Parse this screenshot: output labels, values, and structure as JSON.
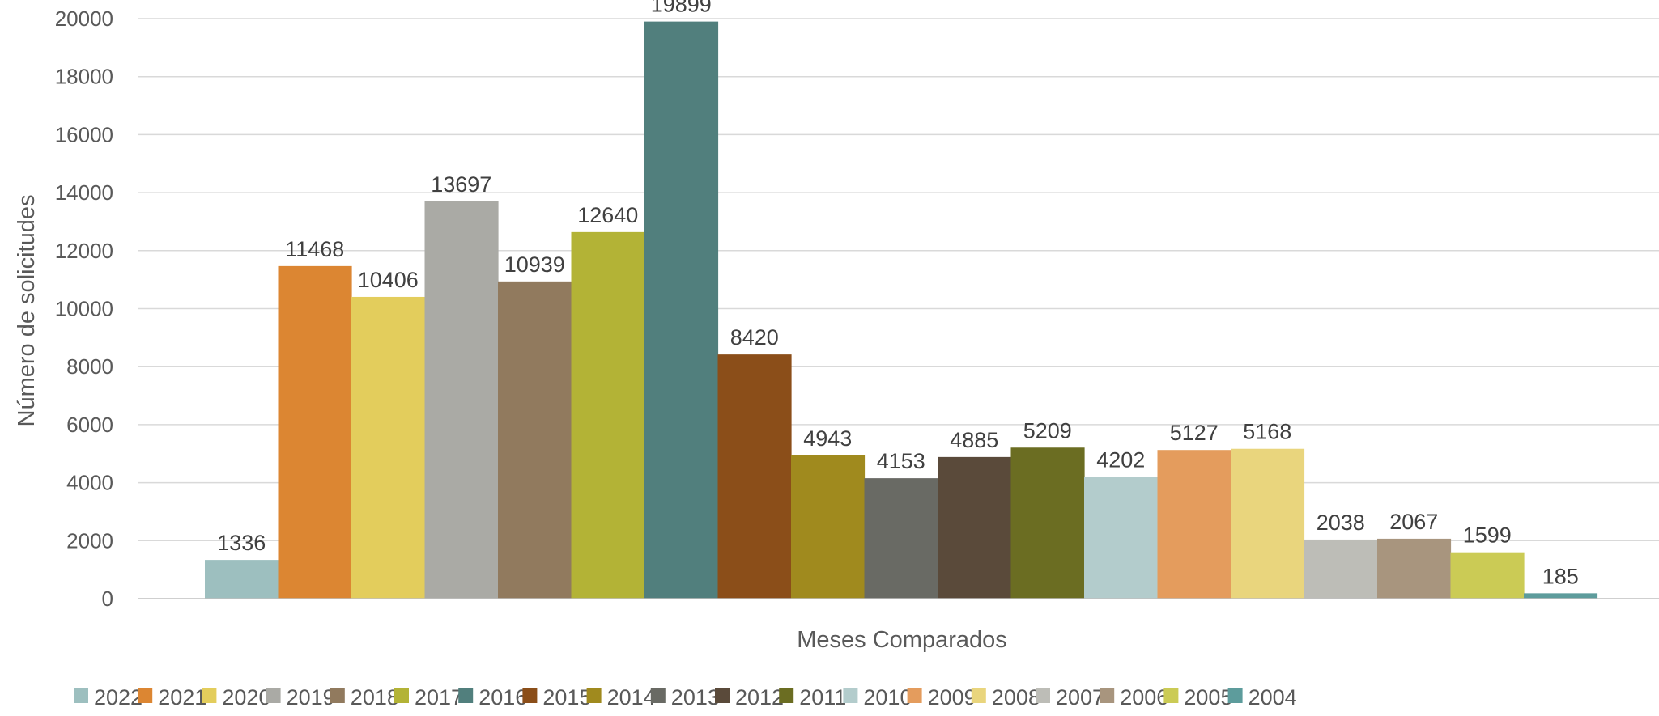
{
  "chart_data": {
    "type": "bar",
    "title": "",
    "xlabel": "Meses Comparados",
    "ylabel": "Número de solicitudes",
    "ylim": [
      0,
      20000
    ],
    "yticks": [
      0,
      2000,
      4000,
      6000,
      8000,
      10000,
      12000,
      14000,
      16000,
      18000,
      20000
    ],
    "grid": true,
    "legend_position": "bottom",
    "series": [
      {
        "name": "2022",
        "value": 1336,
        "color": "#9dbfbf"
      },
      {
        "name": "2021",
        "value": 11468,
        "color": "#dc8632"
      },
      {
        "name": "2020",
        "value": 10406,
        "color": "#e3cd5c"
      },
      {
        "name": "2019",
        "value": 13697,
        "color": "#aaaaa5"
      },
      {
        "name": "2018",
        "value": 10939,
        "color": "#917a5e"
      },
      {
        "name": "2017",
        "value": 12640,
        "color": "#b3b336"
      },
      {
        "name": "2016",
        "value": 19899,
        "color": "#517f7d"
      },
      {
        "name": "2015",
        "value": 8420,
        "color": "#8b4e19"
      },
      {
        "name": "2014",
        "value": 4943,
        "color": "#a08a1e"
      },
      {
        "name": "2013",
        "value": 4153,
        "color": "#696a64"
      },
      {
        "name": "2012",
        "value": 4885,
        "color": "#5a4a3a"
      },
      {
        "name": "2011",
        "value": 5209,
        "color": "#6b6d22"
      },
      {
        "name": "2010",
        "value": 4202,
        "color": "#b3cccc"
      },
      {
        "name": "2009",
        "value": 5127,
        "color": "#e49c5d"
      },
      {
        "name": "2008",
        "value": 5168,
        "color": "#e9d57d"
      },
      {
        "name": "2007",
        "value": 2038,
        "color": "#bdbdb7"
      },
      {
        "name": "2006",
        "value": 2067,
        "color": "#a8957e"
      },
      {
        "name": "2005",
        "value": 1599,
        "color": "#cbcb55"
      },
      {
        "name": "2004",
        "value": 185,
        "color": "#5d9c9c"
      }
    ]
  }
}
